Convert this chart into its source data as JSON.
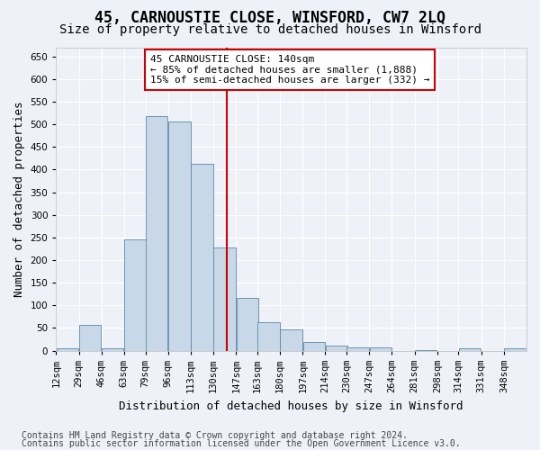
{
  "title": "45, CARNOUSTIE CLOSE, WINSFORD, CW7 2LQ",
  "subtitle": "Size of property relative to detached houses in Winsford",
  "xlabel": "Distribution of detached houses by size in Winsford",
  "ylabel": "Number of detached properties",
  "footer_line1": "Contains HM Land Registry data © Crown copyright and database right 2024.",
  "footer_line2": "Contains public sector information licensed under the Open Government Licence v3.0.",
  "annotation_line1": "45 CARNOUSTIE CLOSE: 140sqm",
  "annotation_line2": "← 85% of detached houses are smaller (1,888)",
  "annotation_line3": "15% of semi-detached houses are larger (332) →",
  "bar_color": "#c8d8e8",
  "bar_edge_color": "#5a8aaa",
  "vline_color": "#cc0000",
  "vline_x": 140,
  "categories": [
    "12sqm",
    "29sqm",
    "46sqm",
    "63sqm",
    "79sqm",
    "96sqm",
    "113sqm",
    "130sqm",
    "147sqm",
    "163sqm",
    "180sqm",
    "197sqm",
    "214sqm",
    "230sqm",
    "247sqm",
    "264sqm",
    "281sqm",
    "298sqm",
    "314sqm",
    "331sqm",
    "348sqm"
  ],
  "values": [
    5,
    57,
    5,
    246,
    517,
    507,
    412,
    228,
    116,
    62,
    46,
    20,
    11,
    8,
    8,
    0,
    2,
    0,
    6,
    0,
    6
  ],
  "bin_starts": [
    12,
    29,
    46,
    63,
    79,
    96,
    113,
    130,
    147,
    163,
    180,
    197,
    214,
    230,
    247,
    264,
    281,
    298,
    314,
    331,
    348
  ],
  "bin_width": 17,
  "ylim": [
    0,
    670
  ],
  "yticks": [
    0,
    50,
    100,
    150,
    200,
    250,
    300,
    350,
    400,
    450,
    500,
    550,
    600,
    650
  ],
  "background_color": "#eef2f8",
  "grid_color": "#ffffff",
  "title_fontsize": 12,
  "subtitle_fontsize": 10,
  "axis_label_fontsize": 9,
  "tick_fontsize": 7.5,
  "annotation_fontsize": 8,
  "footer_fontsize": 7
}
